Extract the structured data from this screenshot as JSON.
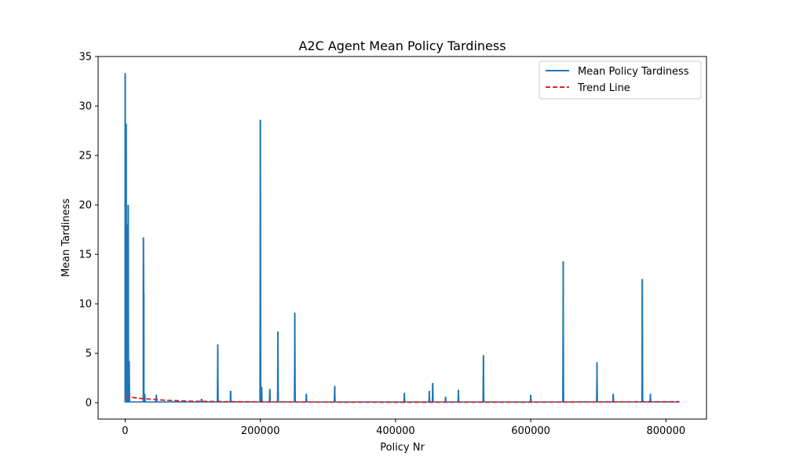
{
  "chart_data": {
    "type": "line",
    "title": "A2C Agent Mean Policy Tardiness",
    "xlabel": "Policy Nr",
    "ylabel": "Mean Tardiness",
    "xlim": [
      -40000,
      860000
    ],
    "ylim": [
      -1.65,
      35
    ],
    "xticks": [
      0,
      200000,
      400000,
      600000,
      800000
    ],
    "yticks": [
      0,
      5,
      10,
      15,
      20,
      25,
      30,
      35
    ],
    "grid": false,
    "legend_position": "top-right",
    "series": [
      {
        "name": "Mean Policy Tardiness",
        "color": "#1f77b4",
        "style": "solid",
        "baseline": 0.08,
        "x_range": [
          0,
          820000
        ],
        "spikes": [
          {
            "x": 0,
            "y": 33.3
          },
          {
            "x": 1500,
            "y": 28.2
          },
          {
            "x": 3000,
            "y": 18.0
          },
          {
            "x": 4500,
            "y": 20.0
          },
          {
            "x": 6000,
            "y": 4.2
          },
          {
            "x": 27000,
            "y": 16.7
          },
          {
            "x": 27600,
            "y": 11.0
          },
          {
            "x": 29000,
            "y": 0.9
          },
          {
            "x": 46000,
            "y": 0.8
          },
          {
            "x": 113000,
            "y": 0.4
          },
          {
            "x": 137000,
            "y": 5.9
          },
          {
            "x": 156000,
            "y": 1.2
          },
          {
            "x": 200000,
            "y": 28.6
          },
          {
            "x": 202000,
            "y": 1.6
          },
          {
            "x": 214000,
            "y": 1.4
          },
          {
            "x": 226000,
            "y": 7.2
          },
          {
            "x": 251000,
            "y": 9.1
          },
          {
            "x": 268000,
            "y": 0.9
          },
          {
            "x": 310000,
            "y": 1.7
          },
          {
            "x": 413000,
            "y": 1.0
          },
          {
            "x": 450000,
            "y": 1.2
          },
          {
            "x": 455000,
            "y": 2.0
          },
          {
            "x": 474000,
            "y": 0.6
          },
          {
            "x": 493000,
            "y": 1.3
          },
          {
            "x": 530000,
            "y": 4.8
          },
          {
            "x": 600000,
            "y": 0.8
          },
          {
            "x": 648000,
            "y": 14.3
          },
          {
            "x": 698000,
            "y": 4.1
          },
          {
            "x": 722000,
            "y": 0.9
          },
          {
            "x": 765000,
            "y": 12.5
          },
          {
            "x": 777000,
            "y": 0.9
          }
        ]
      },
      {
        "name": "Trend Line",
        "color": "#d62728",
        "style": "dashed",
        "x": [
          0,
          20000,
          60000,
          100000,
          200000,
          400000,
          600000,
          820000
        ],
        "y": [
          0.65,
          0.45,
          0.25,
          0.15,
          0.08,
          0.05,
          0.06,
          0.1
        ]
      }
    ]
  }
}
